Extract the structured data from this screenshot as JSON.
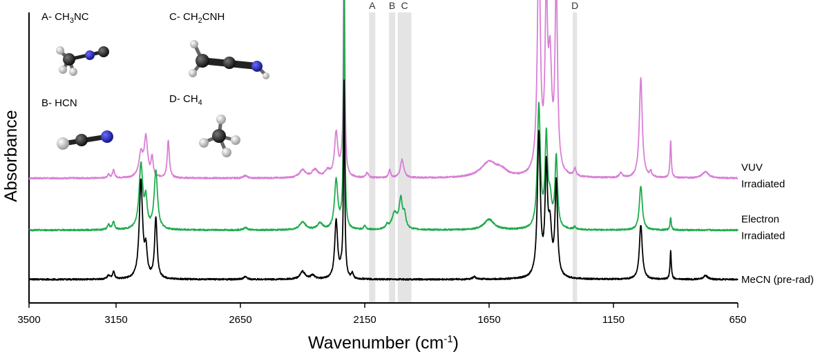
{
  "chart_data": {
    "type": "line",
    "title": "",
    "xlabel": "Wavenumber (cm",
    "xlabel_sup": "-1",
    "xlabel_close": ")",
    "ylabel": "Absorbance",
    "xlim": [
      3500,
      650
    ],
    "x_reversed": true,
    "x_ticks": [
      3500,
      3150,
      2650,
      2150,
      1650,
      1150,
      650
    ],
    "y_ticks_shown": false,
    "grid": false,
    "legend": "labels at right end of each trace",
    "series": [
      {
        "name_lines": [
          "VUV",
          "Irradiated"
        ],
        "color": "#d97fd6",
        "offset": 0.78,
        "peaks": [
          [
            3180,
            0.03,
            5
          ],
          [
            3160,
            0.06,
            5
          ],
          [
            3050,
            0.18,
            10
          ],
          [
            3030,
            0.3,
            8
          ],
          [
            3005,
            0.15,
            5
          ],
          [
            2940,
            0.29,
            5
          ],
          [
            2630,
            0.02,
            8
          ],
          [
            2400,
            0.06,
            15
          ],
          [
            2350,
            0.06,
            15
          ],
          [
            2300,
            0.05,
            12
          ],
          [
            2265,
            0.34,
            8
          ],
          [
            2245,
            0.05,
            6
          ],
          [
            2233,
            2.0,
            3
          ],
          [
            2140,
            0.04,
            6
          ],
          [
            2050,
            0.06,
            5
          ],
          [
            2000,
            0.14,
            8
          ],
          [
            1650,
            0.12,
            40
          ],
          [
            1600,
            0.04,
            25
          ],
          [
            1450,
            1.8,
            7
          ],
          [
            1420,
            1.25,
            6
          ],
          [
            1405,
            0.8,
            8
          ],
          [
            1380,
            1.45,
            6
          ],
          [
            1305,
            0.06,
            5
          ],
          [
            1120,
            0.04,
            6
          ],
          [
            1040,
            0.77,
            7
          ],
          [
            1000,
            0.04,
            5
          ],
          [
            920,
            0.29,
            3
          ],
          [
            780,
            0.05,
            15
          ]
        ]
      },
      {
        "name_lines": [
          "Electron",
          "Irradiated"
        ],
        "color": "#1fab4d",
        "offset": 0.38,
        "peaks": [
          [
            3180,
            0.04,
            6
          ],
          [
            3160,
            0.06,
            5
          ],
          [
            3050,
            0.5,
            9
          ],
          [
            3030,
            0.2,
            6
          ],
          [
            2990,
            0.45,
            8
          ],
          [
            2630,
            0.02,
            8
          ],
          [
            2400,
            0.06,
            15
          ],
          [
            2330,
            0.05,
            12
          ],
          [
            2265,
            0.38,
            8
          ],
          [
            2245,
            0.03,
            6
          ],
          [
            2233,
            1.9,
            3
          ],
          [
            2150,
            0.03,
            5
          ],
          [
            2060,
            0.03,
            5
          ],
          [
            2030,
            0.12,
            14
          ],
          [
            2005,
            0.22,
            8
          ],
          [
            1990,
            0.1,
            6
          ],
          [
            1650,
            0.08,
            25
          ],
          [
            1450,
            0.95,
            7
          ],
          [
            1420,
            0.68,
            6
          ],
          [
            1405,
            0.2,
            8
          ],
          [
            1380,
            0.55,
            6
          ],
          [
            1305,
            0.02,
            5
          ],
          [
            1040,
            0.34,
            7
          ],
          [
            920,
            0.1,
            3
          ]
        ]
      },
      {
        "name_lines": [
          "MeCN (pre-rad)"
        ],
        "color": "#000000",
        "offset": 0.0,
        "peaks": [
          [
            3180,
            0.03,
            6
          ],
          [
            3160,
            0.06,
            5
          ],
          [
            3050,
            0.75,
            8
          ],
          [
            3030,
            0.2,
            6
          ],
          [
            2990,
            0.47,
            6
          ],
          [
            2630,
            0.02,
            8
          ],
          [
            2400,
            0.06,
            12
          ],
          [
            2360,
            0.03,
            10
          ],
          [
            2265,
            0.45,
            7
          ],
          [
            2245,
            0.05,
            6
          ],
          [
            2233,
            1.5,
            3
          ],
          [
            2200,
            0.04,
            4
          ],
          [
            1710,
            0.02,
            8
          ],
          [
            1450,
            1.1,
            7
          ],
          [
            1420,
            0.8,
            6
          ],
          [
            1405,
            0.35,
            8
          ],
          [
            1380,
            0.72,
            6
          ],
          [
            1040,
            0.42,
            7
          ],
          [
            920,
            0.22,
            3
          ],
          [
            780,
            0.03,
            10
          ]
        ]
      }
    ],
    "shaded_bands": [
      {
        "label": "A",
        "x_center": 2120,
        "width": 25
      },
      {
        "label": "B",
        "x_center": 2040,
        "width": 25
      },
      {
        "label": "C",
        "x_center": 1990,
        "width": 55
      },
      {
        "label": "D",
        "x_center": 1305,
        "width": 18
      }
    ]
  },
  "molecules": [
    {
      "label_prefix": "A- CH",
      "sub": "3",
      "label_suffix": "NC"
    },
    {
      "label_prefix": "C- CH",
      "sub": "2",
      "label_suffix": "CNH"
    },
    {
      "label_prefix": "B- HCN",
      "sub": "",
      "label_suffix": ""
    },
    {
      "label_prefix": "D- CH",
      "sub": "4",
      "label_suffix": ""
    }
  ]
}
